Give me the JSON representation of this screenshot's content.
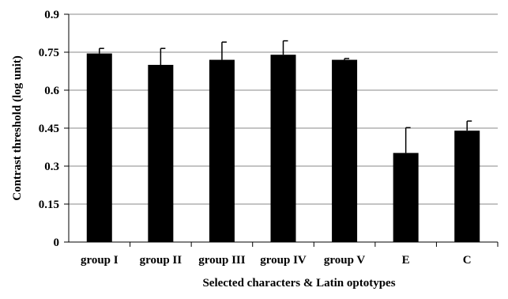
{
  "chart_data": {
    "type": "bar",
    "title": "",
    "xlabel": "Selected characters & Latin optotypes",
    "ylabel": "Contrast threshold (log unit)",
    "ylim": [
      0,
      0.9
    ],
    "yticks": [
      0,
      0.15,
      0.3,
      0.45,
      0.6,
      0.75,
      0.9
    ],
    "ytick_labels": [
      "0",
      "0.15",
      "0.3",
      "0.45",
      "0.6",
      "0.75",
      "0.9"
    ],
    "grid": true,
    "legend": "none",
    "categories": [
      "group  I",
      "group II",
      "group III",
      "group IV",
      "group V",
      "E",
      "C"
    ],
    "values": [
      0.745,
      0.7,
      0.72,
      0.74,
      0.72,
      0.352,
      0.44
    ],
    "error_upper": [
      0.02,
      0.065,
      0.07,
      0.055,
      0.005,
      0.1,
      0.038
    ],
    "colors": {
      "bar": "#000000",
      "grid": "#888888",
      "axis": "#000000"
    }
  }
}
